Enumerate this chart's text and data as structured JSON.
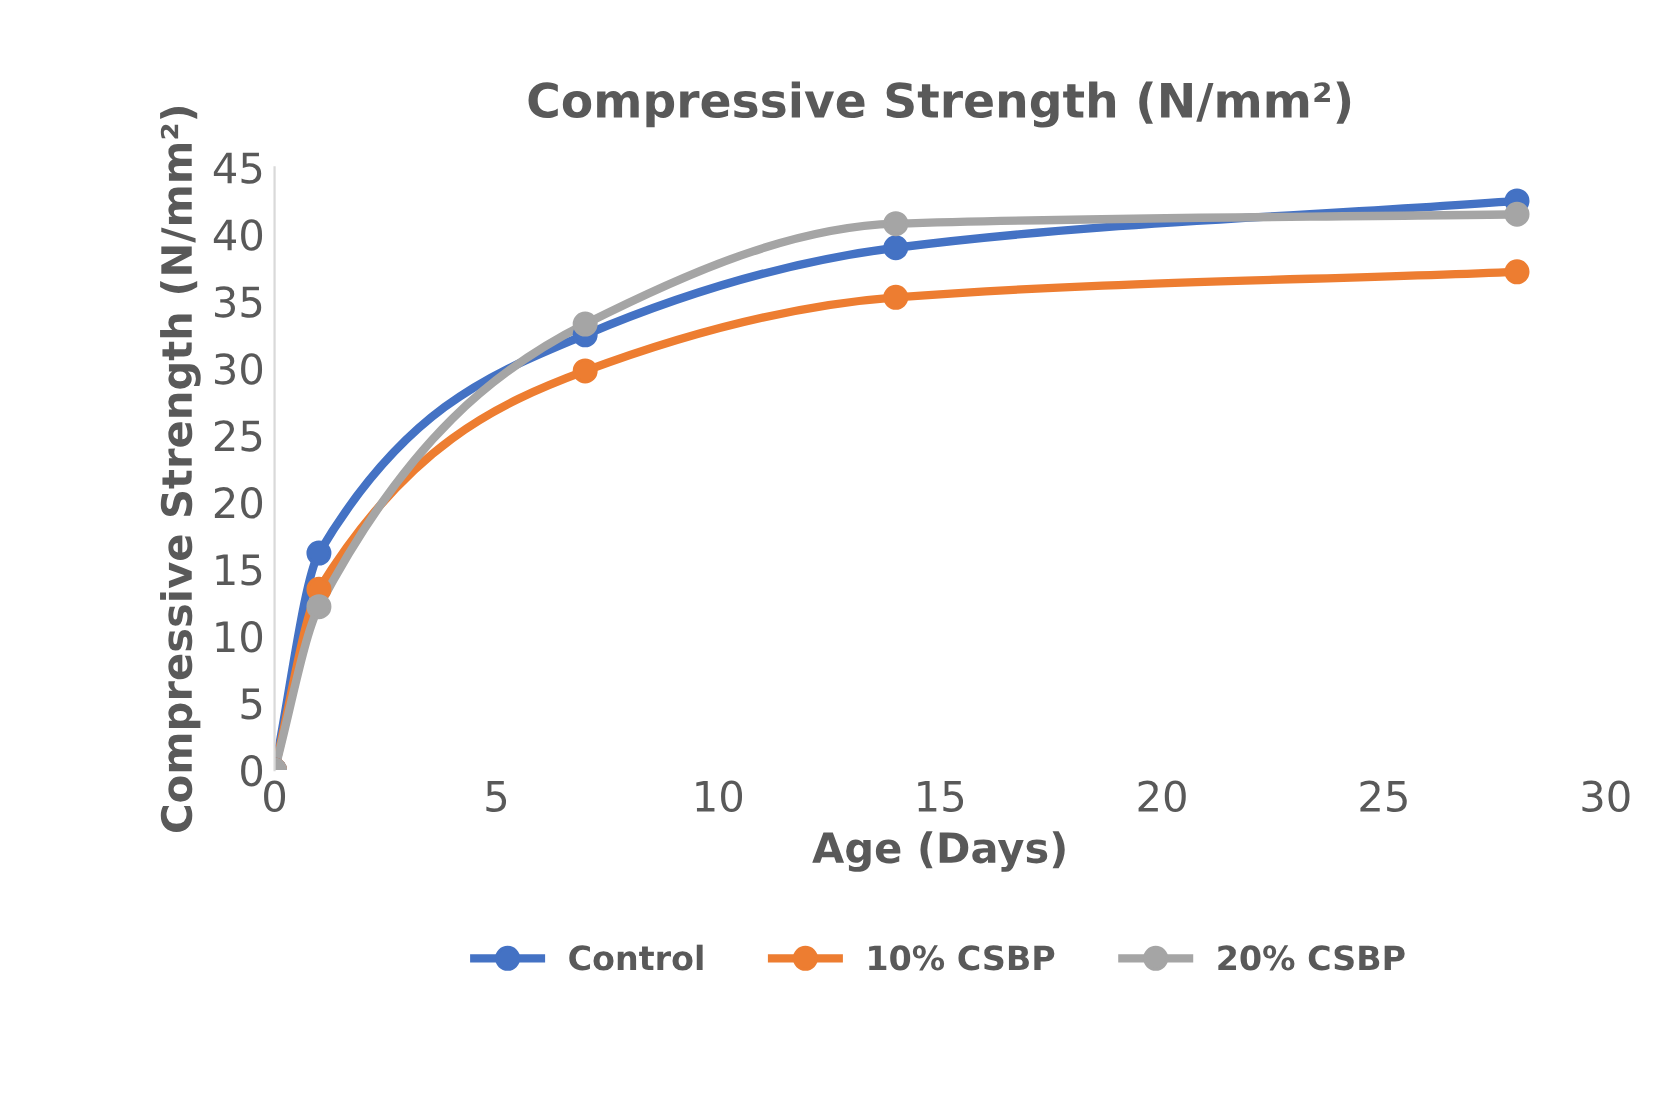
{
  "chart_data": {
    "type": "line",
    "title": "Compressive Strength (N/mm²)",
    "xlabel": "Age (Days)",
    "ylabel": "Compressive Strength (N/mm²)",
    "x": [
      0,
      1,
      7,
      14,
      28
    ],
    "series": [
      {
        "name": "Control",
        "color": "#4472c4",
        "values": [
          0,
          16.2,
          32.5,
          39,
          42.5
        ]
      },
      {
        "name": "10% CSBP",
        "color": "#ed7d31",
        "values": [
          0,
          13.5,
          29.8,
          35.3,
          37.2
        ]
      },
      {
        "name": "20% CSBP",
        "color": "#a5a5a5",
        "values": [
          0,
          12.2,
          33.3,
          40.8,
          41.5
        ]
      }
    ],
    "xlim": [
      0,
      30
    ],
    "xticks": [
      0,
      5,
      10,
      15,
      20,
      25,
      30
    ],
    "ylim": [
      0,
      45
    ],
    "yticks": [
      0,
      5,
      10,
      15,
      20,
      25,
      30,
      35,
      40,
      45
    ],
    "grid": false,
    "legend": "bottom",
    "marker": "circle",
    "line_style": "solid"
  }
}
